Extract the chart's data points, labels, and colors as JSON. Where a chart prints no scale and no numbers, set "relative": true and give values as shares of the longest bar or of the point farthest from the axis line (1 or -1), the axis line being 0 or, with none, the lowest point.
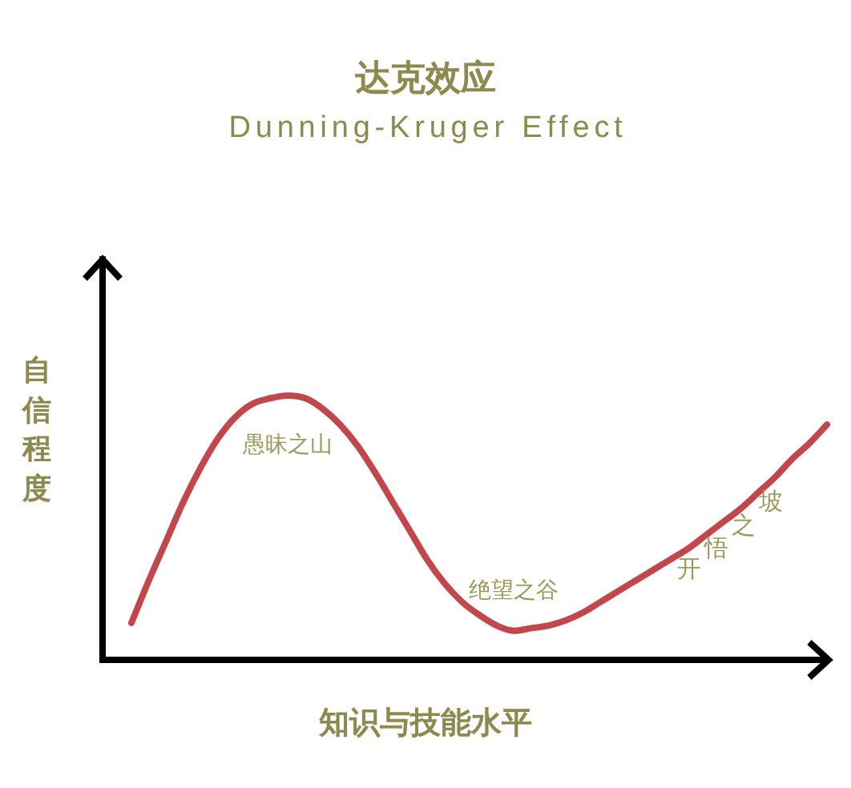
{
  "chart_data": {
    "type": "line",
    "title": "达克效应",
    "subtitle": "Dunning-Kruger Effect",
    "xlabel": "知识与技能水平",
    "ylabel": "自信程度",
    "annotations": [
      "愚昧之山",
      "绝望之谷",
      "开悟之坡"
    ],
    "categories": [
      null,
      null,
      null,
      null,
      null,
      null,
      null,
      null,
      null,
      null,
      null,
      null,
      null,
      null,
      null,
      null,
      null,
      null,
      null,
      null,
      null,
      null,
      null,
      null,
      null,
      null,
      null,
      null,
      null,
      null,
      null,
      null,
      null,
      null,
      null,
      null,
      null,
      null,
      null,
      null,
      null
    ],
    "values": [
      0.14,
      0.3,
      0.45,
      0.6,
      0.73,
      0.84,
      0.92,
      0.97,
      0.99,
      1.0,
      0.99,
      0.95,
      0.89,
      0.81,
      0.71,
      0.6,
      0.49,
      0.38,
      0.29,
      0.22,
      0.17,
      0.13,
      0.11,
      0.12,
      0.13,
      0.15,
      0.18,
      0.22,
      0.26,
      0.3,
      0.34,
      0.38,
      0.42,
      0.47,
      0.52,
      0.57,
      0.63,
      0.69,
      0.76,
      0.82,
      0.89
    ],
    "color": "#c1474c",
    "relative": true,
    "line_style": "solid"
  }
}
